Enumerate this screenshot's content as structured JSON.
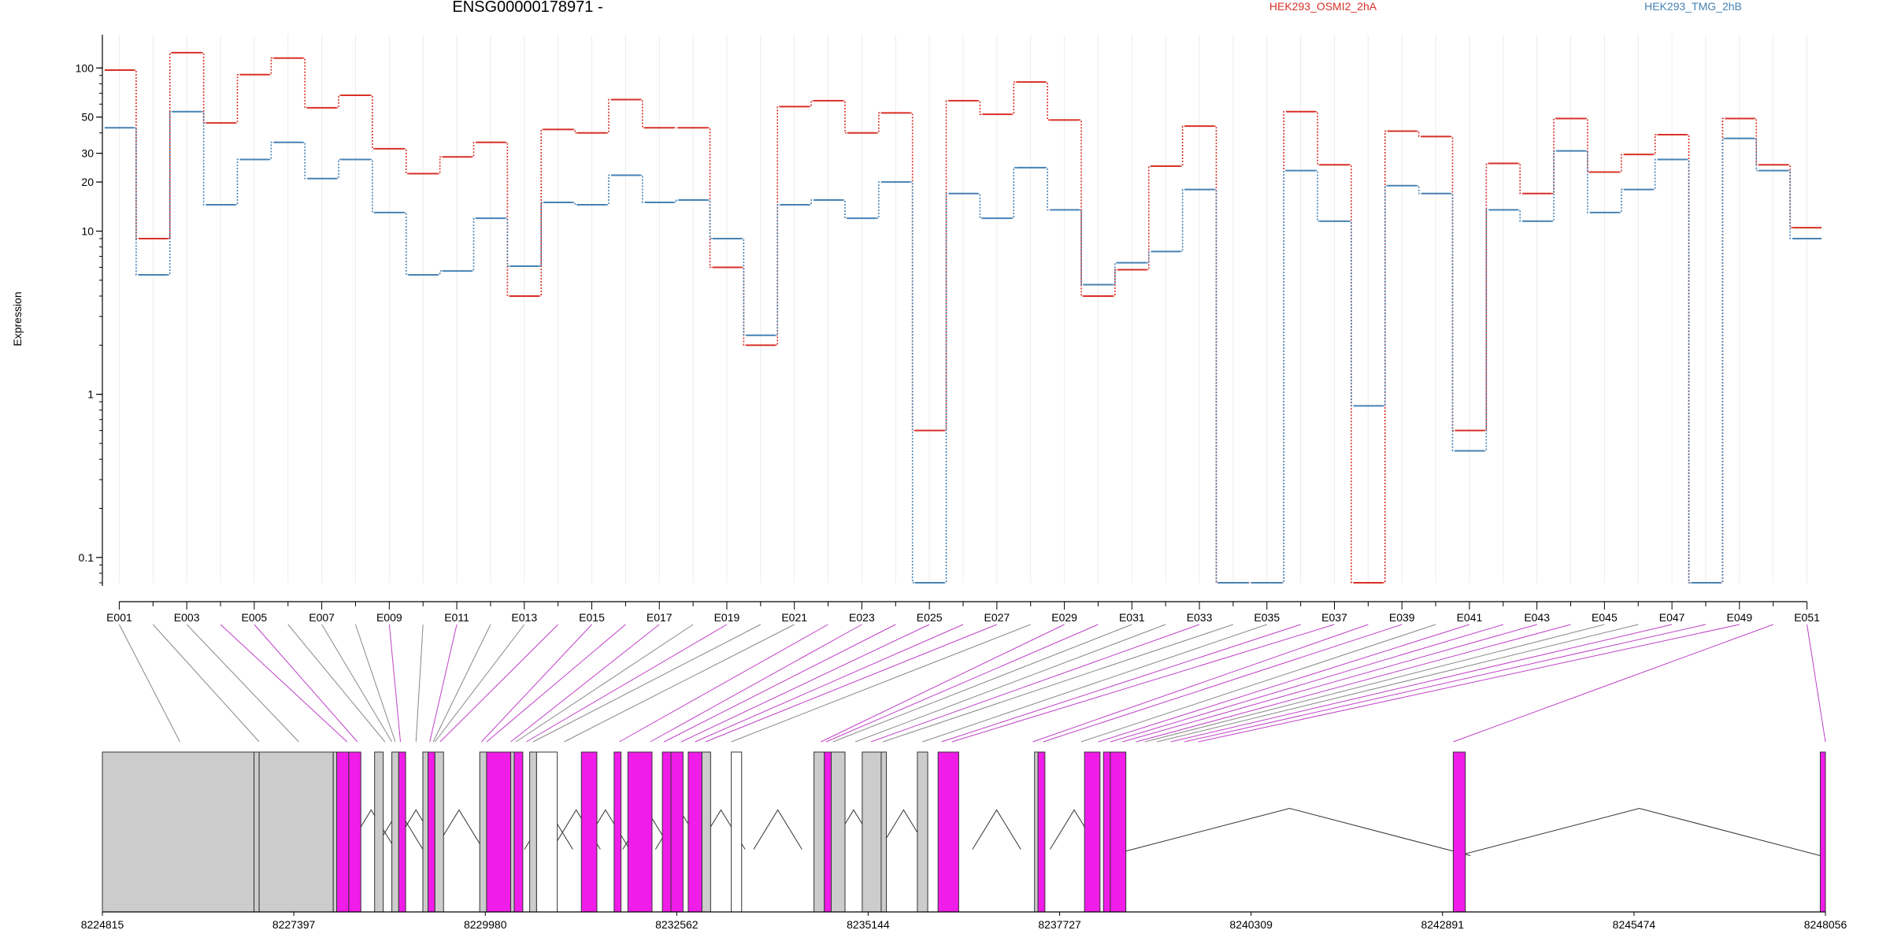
{
  "chart_data": {
    "type": "line",
    "title": "ENSG00000178971 -",
    "ylabel": "Expression",
    "yscale": "log",
    "ylim": [
      0.07,
      160
    ],
    "yticks": [
      0.1,
      1,
      10,
      20,
      30,
      50,
      100
    ],
    "ytick_labels": [
      "0.1",
      "1",
      "10",
      "20",
      "30",
      "50",
      "100"
    ],
    "grid": "vertical",
    "legend_placement": "top",
    "x": [
      "E001",
      "E002",
      "E003",
      "E004",
      "E005",
      "E006",
      "E007",
      "E008",
      "E009",
      "E010",
      "E011",
      "E012",
      "E013",
      "E014",
      "E015",
      "E016",
      "E017",
      "E018",
      "E019",
      "E020",
      "E021",
      "E022",
      "E023",
      "E024",
      "E025",
      "E026",
      "E027",
      "E028",
      "E029",
      "E030",
      "E031",
      "E032",
      "E033",
      "E034",
      "E035",
      "E036",
      "E037",
      "E038",
      "E039",
      "E040",
      "E041",
      "E042",
      "E043",
      "E044",
      "E045",
      "E046",
      "E047",
      "E048",
      "E049",
      "E050",
      "E051"
    ],
    "x_tick_labels": [
      "E001",
      "E003",
      "E005",
      "E007",
      "E009",
      "E011",
      "E013",
      "E015",
      "E017",
      "E019",
      "E021",
      "E023",
      "E025",
      "E027",
      "E029",
      "E031",
      "E033",
      "E035",
      "E037",
      "E039",
      "E041",
      "E043",
      "E045",
      "E047",
      "E049",
      "E051"
    ],
    "series": [
      {
        "name": "HEK293_OSMI2_2hA",
        "color": "#d73027",
        "values": [
          97,
          9,
          124,
          46,
          91,
          115,
          57,
          68,
          32,
          22.5,
          28.5,
          35,
          4,
          42,
          40,
          64,
          43,
          43,
          6,
          2,
          58,
          63,
          40,
          53,
          0.6,
          63,
          52,
          82,
          48,
          4,
          5.8,
          25,
          44,
          0.07,
          0.07,
          54,
          25.5,
          0.07,
          41,
          38,
          0.6,
          26,
          17,
          49,
          23,
          29.5,
          39,
          0.07,
          49,
          25.5,
          10.5
        ]
      },
      {
        "name": "HEK293_TMG_2hB",
        "color": "#4682b4",
        "values": [
          43,
          5.4,
          54,
          14.5,
          27.5,
          35,
          21,
          27.5,
          13,
          5.4,
          5.7,
          12,
          6.1,
          15,
          14.5,
          22,
          15,
          15.5,
          9,
          2.3,
          14.5,
          15.5,
          12,
          20,
          0.07,
          17,
          12,
          24.5,
          13.5,
          4.7,
          6.4,
          7.5,
          18,
          0.07,
          0.07,
          23.5,
          11.5,
          0.85,
          19,
          17,
          0.45,
          13.5,
          11.5,
          31,
          13,
          18,
          27.5,
          0.07,
          37,
          23.5,
          9
        ]
      }
    ],
    "genomic_axis": {
      "tick_labels": [
        "8224815",
        "8227397",
        "8229980",
        "8232562",
        "8235144",
        "8237727",
        "8240309",
        "8242891",
        "8245474",
        "8248056"
      ],
      "tick_values": [
        8224815,
        8227397,
        8229980,
        8232562,
        8235144,
        8237727,
        8240309,
        8242891,
        8245474,
        8248056
      ]
    }
  },
  "colors": {
    "series_a": "#d73027",
    "series_b": "#4682b4",
    "exon_highlight": "#f01ce8",
    "exon_plain": "#cccccc",
    "connector_highlight": "#c040c8",
    "connector_plain": "#888888"
  },
  "gene_model": {
    "bins": [
      {
        "x0": 0.0,
        "x1": 0.088,
        "fill": "grey"
      },
      {
        "x0": 0.088,
        "x1": 0.091,
        "fill": "grey"
      },
      {
        "x0": 0.091,
        "x1": 0.134,
        "fill": "grey"
      },
      {
        "x0": 0.134,
        "x1": 0.136,
        "fill": "grey"
      },
      {
        "x0": 0.136,
        "x1": 0.143,
        "fill": "magenta"
      },
      {
        "x0": 0.143,
        "x1": 0.15,
        "fill": "magenta"
      },
      {
        "x0": 0.158,
        "x1": 0.163,
        "fill": "grey"
      },
      {
        "x0": 0.168,
        "x1": 0.172,
        "fill": "grey"
      },
      {
        "x0": 0.172,
        "x1": 0.176,
        "fill": "magenta"
      },
      {
        "x0": 0.186,
        "x1": 0.189,
        "fill": "grey"
      },
      {
        "x0": 0.189,
        "x1": 0.193,
        "fill": "magenta"
      },
      {
        "x0": 0.193,
        "x1": 0.198,
        "fill": "grey"
      },
      {
        "x0": 0.219,
        "x1": 0.223,
        "fill": "grey"
      },
      {
        "x0": 0.223,
        "x1": 0.237,
        "fill": "magenta"
      },
      {
        "x0": 0.237,
        "x1": 0.239,
        "fill": "grey"
      },
      {
        "x0": 0.239,
        "x1": 0.244,
        "fill": "magenta"
      },
      {
        "x0": 0.248,
        "x1": 0.252,
        "fill": "grey"
      },
      {
        "x0": 0.252,
        "x1": 0.264,
        "fill": "white"
      },
      {
        "x0": 0.278,
        "x1": 0.287,
        "fill": "magenta"
      },
      {
        "x0": 0.297,
        "x1": 0.301,
        "fill": "magenta"
      },
      {
        "x0": 0.305,
        "x1": 0.319,
        "fill": "magenta"
      },
      {
        "x0": 0.325,
        "x1": 0.33,
        "fill": "magenta"
      },
      {
        "x0": 0.33,
        "x1": 0.337,
        "fill": "magenta"
      },
      {
        "x0": 0.34,
        "x1": 0.348,
        "fill": "magenta"
      },
      {
        "x0": 0.348,
        "x1": 0.353,
        "fill": "grey"
      },
      {
        "x0": 0.365,
        "x1": 0.371,
        "fill": "white"
      },
      {
        "x0": 0.413,
        "x1": 0.419,
        "fill": "grey"
      },
      {
        "x0": 0.419,
        "x1": 0.423,
        "fill": "magenta"
      },
      {
        "x0": 0.423,
        "x1": 0.431,
        "fill": "grey"
      },
      {
        "x0": 0.441,
        "x1": 0.452,
        "fill": "grey"
      },
      {
        "x0": 0.452,
        "x1": 0.455,
        "fill": "grey"
      },
      {
        "x0": 0.473,
        "x1": 0.479,
        "fill": "grey"
      },
      {
        "x0": 0.485,
        "x1": 0.497,
        "fill": "magenta"
      },
      {
        "x0": 0.541,
        "x1": 0.543,
        "fill": "grey"
      },
      {
        "x0": 0.543,
        "x1": 0.547,
        "fill": "magenta"
      },
      {
        "x0": 0.57,
        "x1": 0.579,
        "fill": "magenta"
      },
      {
        "x0": 0.581,
        "x1": 0.585,
        "fill": "magenta"
      },
      {
        "x0": 0.585,
        "x1": 0.594,
        "fill": "magenta"
      },
      {
        "x0": 0.784,
        "x1": 0.791,
        "fill": "magenta"
      },
      {
        "x0": 0.997,
        "x1": 1.0,
        "fill": "magenta"
      }
    ],
    "connector_targets": [
      0.045,
      0.091,
      0.114,
      0.142,
      0.148,
      0.164,
      0.168,
      0.17,
      0.173,
      0.182,
      0.19,
      0.192,
      0.193,
      0.196,
      0.22,
      0.223,
      0.237,
      0.24,
      0.246,
      0.25,
      0.268,
      0.3,
      0.318,
      0.326,
      0.336,
      0.344,
      0.35,
      0.365,
      0.417,
      0.42,
      0.424,
      0.437,
      0.446,
      0.453,
      0.476,
      0.487,
      0.493,
      0.54,
      0.546,
      0.568,
      0.578,
      0.585,
      0.592,
      0.6,
      0.605,
      0.612,
      0.62,
      0.628,
      0.636,
      0.784,
      1.0
    ],
    "connector_highlight": [
      false,
      false,
      false,
      true,
      true,
      false,
      false,
      false,
      true,
      false,
      true,
      false,
      false,
      true,
      true,
      true,
      true,
      false,
      true,
      false,
      false,
      true,
      true,
      true,
      true,
      true,
      true,
      false,
      true,
      true,
      false,
      false,
      true,
      false,
      false,
      true,
      true,
      true,
      true,
      false,
      true,
      true,
      true,
      true,
      false,
      false,
      true,
      true,
      true,
      true,
      true
    ],
    "junction_peaks": [
      0.066,
      0.111,
      0.156,
      0.172,
      0.182,
      0.207,
      0.259,
      0.275,
      0.292,
      0.316,
      0.335,
      0.359,
      0.392,
      0.436,
      0.465,
      0.519,
      0.564,
      0.689,
      0.892
    ]
  }
}
